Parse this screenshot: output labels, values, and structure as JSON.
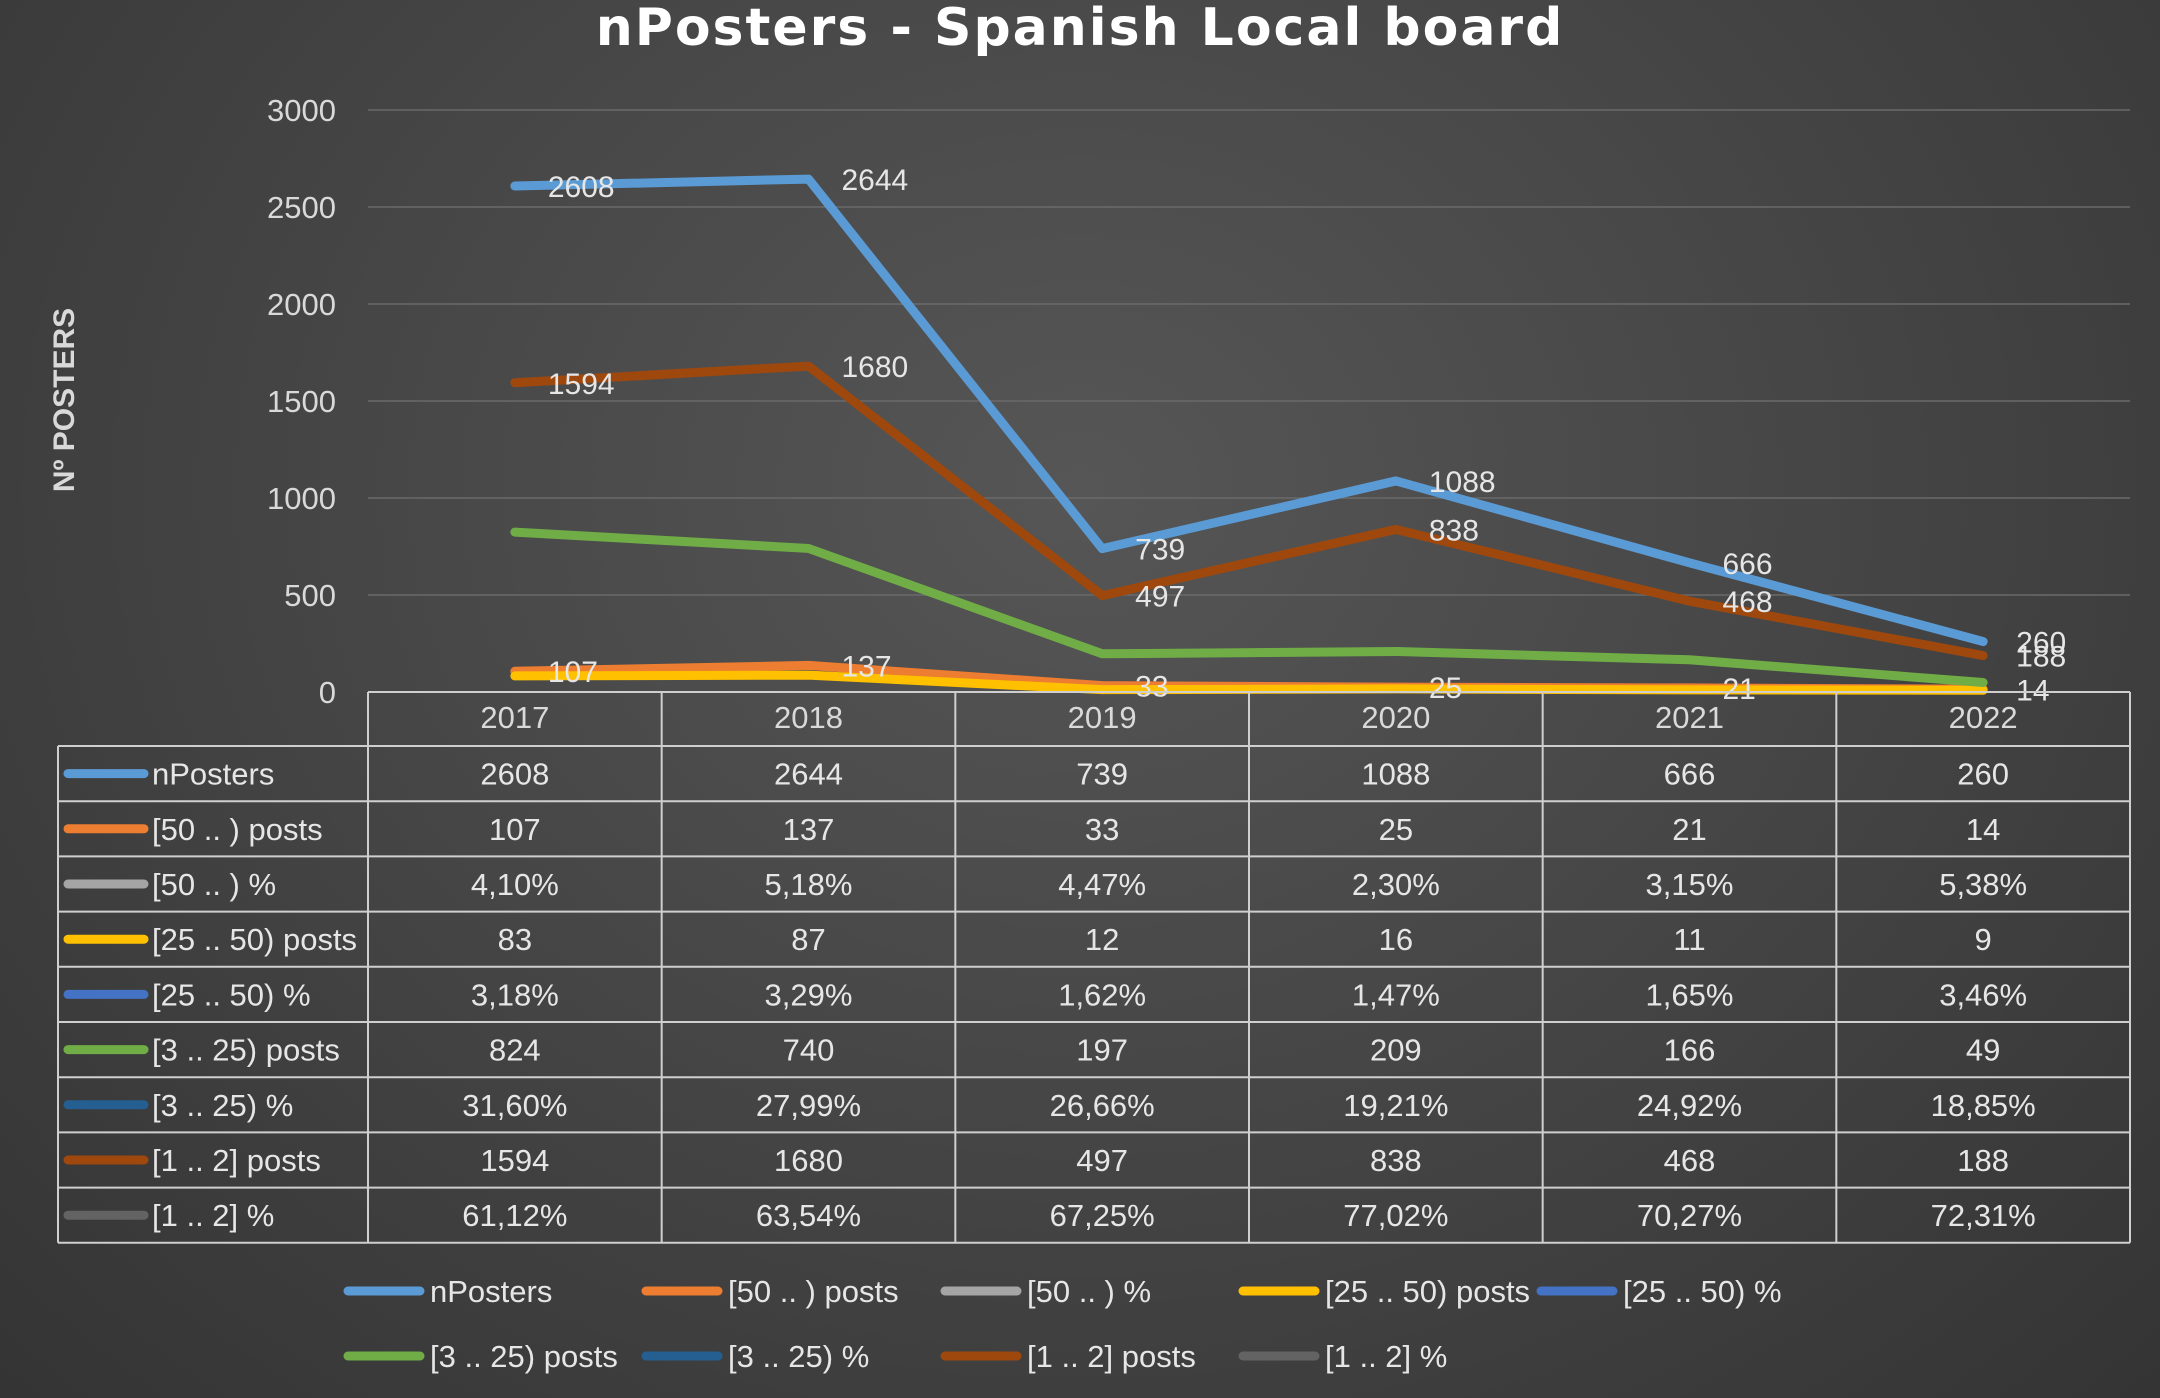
{
  "title": "nPosters - Spanish Local board",
  "chart_data": {
    "type": "line",
    "title": "nPosters - Spanish Local board",
    "xlabel": "",
    "ylabel": "Nº POSTERS",
    "ylim": [
      0,
      3000
    ],
    "yticks": [
      0,
      500,
      1000,
      1500,
      2000,
      2500,
      3000
    ],
    "grid": true,
    "legend_position": "bottom",
    "categories": [
      "2017",
      "2018",
      "2019",
      "2020",
      "2021",
      "2022"
    ],
    "series": [
      {
        "name": "nPosters",
        "color": "#5b9bd5",
        "plotted": true,
        "labeled": true,
        "values": [
          2608,
          2644,
          739,
          1088,
          666,
          260
        ],
        "table": [
          "2608",
          "2644",
          "739",
          "1088",
          "666",
          "260"
        ]
      },
      {
        "name": "[50 .. ) posts",
        "color": "#ed7d31",
        "plotted": true,
        "labeled": true,
        "values": [
          107,
          137,
          33,
          25,
          21,
          14
        ],
        "table": [
          "107",
          "137",
          "33",
          "25",
          "21",
          "14"
        ]
      },
      {
        "name": "[50 .. ) %",
        "color": "#a5a5a5",
        "plotted": false,
        "labeled": false,
        "values": [
          4.1,
          5.18,
          4.47,
          2.3,
          3.15,
          5.38
        ],
        "table": [
          "4,10%",
          "5,18%",
          "4,47%",
          "2,30%",
          "3,15%",
          "5,38%"
        ]
      },
      {
        "name": "[25 .. 50) posts",
        "color": "#ffc000",
        "plotted": true,
        "labeled": false,
        "values": [
          83,
          87,
          12,
          16,
          11,
          9
        ],
        "table": [
          "83",
          "87",
          "12",
          "16",
          "11",
          "9"
        ]
      },
      {
        "name": "[25 .. 50) %",
        "color": "#4472c4",
        "plotted": false,
        "labeled": false,
        "values": [
          3.18,
          3.29,
          1.62,
          1.47,
          1.65,
          3.46
        ],
        "table": [
          "3,18%",
          "3,29%",
          "1,62%",
          "1,47%",
          "1,65%",
          "3,46%"
        ]
      },
      {
        "name": "[3 .. 25) posts",
        "color": "#70ad47",
        "plotted": true,
        "labeled": false,
        "values": [
          824,
          740,
          197,
          209,
          166,
          49
        ],
        "table": [
          "824",
          "740",
          "197",
          "209",
          "166",
          "49"
        ]
      },
      {
        "name": "[3 .. 25) %",
        "color": "#255e91",
        "plotted": false,
        "labeled": false,
        "values": [
          31.6,
          27.99,
          26.66,
          19.21,
          24.92,
          18.85
        ],
        "table": [
          "31,60%",
          "27,99%",
          "26,66%",
          "19,21%",
          "24,92%",
          "18,85%"
        ]
      },
      {
        "name": "[1 .. 2] posts",
        "color": "#9e480e",
        "plotted": true,
        "labeled": true,
        "values": [
          1594,
          1680,
          497,
          838,
          468,
          188
        ],
        "table": [
          "1594",
          "1680",
          "497",
          "838",
          "468",
          "188"
        ]
      },
      {
        "name": "[1 .. 2] %",
        "color": "#636363",
        "plotted": false,
        "labeled": false,
        "values": [
          61.12,
          63.54,
          67.25,
          77.02,
          70.27,
          72.31
        ],
        "table": [
          "61,12%",
          "63,54%",
          "67,25%",
          "77,02%",
          "70,27%",
          "72,31%"
        ]
      }
    ]
  }
}
